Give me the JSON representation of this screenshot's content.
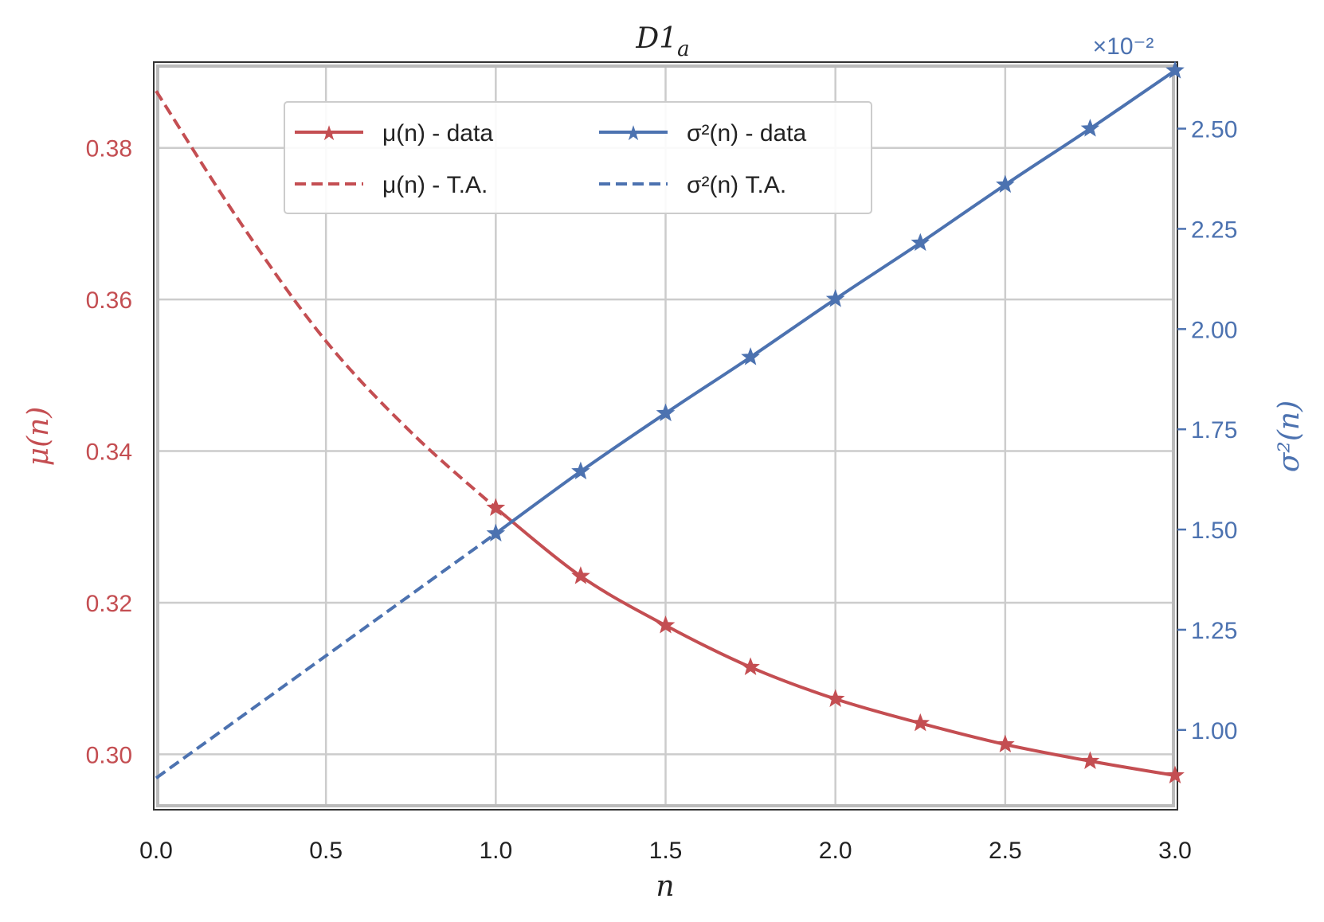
{
  "chart_data": {
    "type": "line",
    "title": "D1",
    "title_subscript": "a",
    "xlabel": "n",
    "ylabel_left": "μ(n)",
    "ylabel_right": "σ²(n)",
    "right_axis_multiplier": "×10⁻²",
    "xlim": [
      0.0,
      3.0
    ],
    "ylim_left": [
      0.293,
      0.391
    ],
    "ylim_right": [
      0.807,
      2.66
    ],
    "x_ticks": [
      "0.0",
      "0.5",
      "1.0",
      "1.5",
      "2.0",
      "2.5",
      "3.0"
    ],
    "y_left_ticks": [
      "0.30",
      "0.32",
      "0.34",
      "0.36",
      "0.38"
    ],
    "y_right_ticks": [
      "1.00",
      "1.25",
      "1.50",
      "1.75",
      "2.00",
      "2.25",
      "2.50"
    ],
    "grid": true,
    "legend_position": "top-center",
    "colors": {
      "mu": "#c44e52",
      "sigma": "#4c72b0",
      "grid": "#cccccc",
      "frame": "#333333"
    },
    "series": [
      {
        "name": "μ(n) - data",
        "axis": "left",
        "style": "solid-star",
        "x": [
          1.0,
          1.25,
          1.5,
          1.75,
          2.0,
          2.25,
          2.5,
          2.75,
          3.0
        ],
        "values": [
          0.3325,
          0.3235,
          0.317,
          0.3115,
          0.3073,
          0.3041,
          0.3013,
          0.2991,
          0.2972
        ]
      },
      {
        "name": "μ(n) - T.A.",
        "axis": "left",
        "style": "dashed",
        "x": [
          0.0,
          0.25,
          0.5,
          0.75,
          1.0
        ],
        "values": [
          0.3875,
          0.37,
          0.3545,
          0.3425,
          0.3325
        ]
      },
      {
        "name": "σ²(n) - data",
        "axis": "right",
        "style": "solid-star",
        "x": [
          1.0,
          1.25,
          1.5,
          1.75,
          2.0,
          2.25,
          2.5,
          2.75,
          3.0
        ],
        "values": [
          1.49,
          1.645,
          1.79,
          1.93,
          2.075,
          2.215,
          2.36,
          2.5,
          2.645
        ]
      },
      {
        "name": "σ²(n) T.A.",
        "axis": "right",
        "style": "dashed",
        "x": [
          0.0,
          1.0
        ],
        "values": [
          0.88,
          1.49
        ]
      }
    ],
    "legend": [
      {
        "label": "μ(n) - data",
        "series": 0
      },
      {
        "label": "μ(n) - T.A.",
        "series": 1
      },
      {
        "label": "σ²(n) - data",
        "series": 2
      },
      {
        "label": "σ²(n) T.A.",
        "series": 3
      }
    ]
  }
}
